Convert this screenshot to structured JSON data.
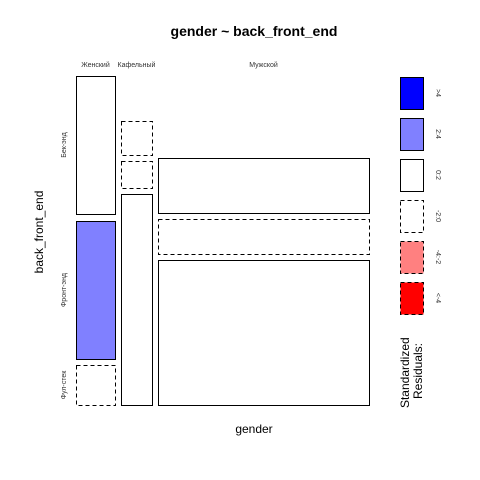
{
  "chart_data": {
    "type": "mosaic",
    "title": "gender ~ back_front_end",
    "xlabel": "gender",
    "ylabel": "back_front_end",
    "x_categories": [
      "Женский",
      "Кафельный",
      "Мужской"
    ],
    "y_categories": [
      "Бек-энд",
      "Фронт-энд",
      "Фул-стек"
    ],
    "cells": [
      {
        "x": "Женский",
        "y": "Бек-энд",
        "residual_class": "0:2"
      },
      {
        "x": "Женский",
        "y": "Фронт-энд",
        "residual_class": "2:4"
      },
      {
        "x": "Женский",
        "y": "Фул-стек",
        "residual_class": "-2:0"
      },
      {
        "x": "Кафельный",
        "y": "Бек-энд",
        "residual_class": "-2:0"
      },
      {
        "x": "Кафельный",
        "y": "Фронт-энд",
        "residual_class": "-2:0"
      },
      {
        "x": "Кафельный",
        "y": "Фул-стек",
        "residual_class": "0:2"
      },
      {
        "x": "Мужской",
        "y": "Бек-энд",
        "residual_class": "0:2"
      },
      {
        "x": "Мужской",
        "y": "Фронт-энд",
        "residual_class": "-2:0"
      },
      {
        "x": "Мужской",
        "y": "Фул-стек",
        "residual_class": "0:2"
      }
    ],
    "legend": {
      "title_lines": [
        "Standardized",
        "Residuals:"
      ],
      "placement": "right",
      "bins": [
        {
          "label": ">4",
          "fill": "#0000ff",
          "dashed": false
        },
        {
          "label": "2:4",
          "fill": "#8080ff",
          "dashed": false
        },
        {
          "label": "0:2",
          "fill": "#ffffff",
          "dashed": false
        },
        {
          "label": "-2:0",
          "fill": "#ffffff",
          "dashed": true
        },
        {
          "label": "-4:-2",
          "fill": "#ff8080",
          "dashed": true
        },
        {
          "label": "<-4",
          "fill": "#ff0000",
          "dashed": true
        }
      ]
    }
  }
}
